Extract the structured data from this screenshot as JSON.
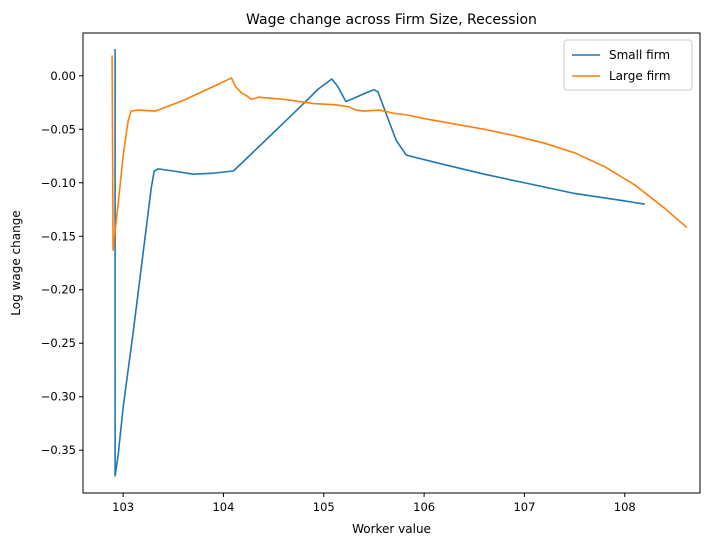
{
  "chart_data": {
    "type": "line",
    "title": "Wage change across Firm Size, Recession",
    "xlabel": "Worker value",
    "ylabel": "Log wage change",
    "xlim": [
      102.6,
      108.75
    ],
    "ylim": [
      -0.39,
      0.04
    ],
    "xticks": [
      103,
      104,
      105,
      106,
      107,
      108
    ],
    "xtick_labels": [
      "103",
      "104",
      "105",
      "106",
      "107",
      "108"
    ],
    "yticks": [
      0.0,
      -0.05,
      -0.1,
      -0.15,
      -0.2,
      -0.25,
      -0.3,
      -0.35
    ],
    "ytick_labels": [
      "0.00",
      "−0.05",
      "−0.10",
      "−0.15",
      "−0.20",
      "−0.25",
      "−0.30",
      "−0.35"
    ],
    "grid": false,
    "legend_position": "top-right",
    "series": [
      {
        "name": "Small firm",
        "color": "#1f77b4",
        "points": [
          [
            102.92,
            0.025
          ],
          [
            102.92,
            -0.374
          ],
          [
            102.95,
            -0.355
          ],
          [
            103.0,
            -0.31
          ],
          [
            103.1,
            -0.24
          ],
          [
            103.2,
            -0.165
          ],
          [
            103.28,
            -0.105
          ],
          [
            103.31,
            -0.089
          ],
          [
            103.35,
            -0.087
          ],
          [
            103.5,
            -0.089
          ],
          [
            103.7,
            -0.092
          ],
          [
            103.9,
            -0.091
          ],
          [
            104.1,
            -0.089
          ],
          [
            104.4,
            -0.062
          ],
          [
            104.7,
            -0.035
          ],
          [
            104.95,
            -0.012
          ],
          [
            105.08,
            -0.003
          ],
          [
            105.14,
            -0.01
          ],
          [
            105.22,
            -0.024
          ],
          [
            105.3,
            -0.021
          ],
          [
            105.42,
            -0.016
          ],
          [
            105.5,
            -0.013
          ],
          [
            105.54,
            -0.015
          ],
          [
            105.62,
            -0.035
          ],
          [
            105.72,
            -0.06
          ],
          [
            105.82,
            -0.074
          ],
          [
            105.9,
            -0.076
          ],
          [
            106.2,
            -0.083
          ],
          [
            106.6,
            -0.092
          ],
          [
            107.0,
            -0.1
          ],
          [
            107.5,
            -0.11
          ],
          [
            108.0,
            -0.117
          ],
          [
            108.2,
            -0.12
          ]
        ]
      },
      {
        "name": "Large firm",
        "color": "#ff7f0e",
        "points": [
          [
            102.89,
            0.019
          ],
          [
            102.9,
            -0.163
          ],
          [
            102.92,
            -0.145
          ],
          [
            102.95,
            -0.12
          ],
          [
            103.0,
            -0.075
          ],
          [
            103.05,
            -0.042
          ],
          [
            103.08,
            -0.033
          ],
          [
            103.15,
            -0.032
          ],
          [
            103.32,
            -0.033
          ],
          [
            103.6,
            -0.023
          ],
          [
            103.9,
            -0.01
          ],
          [
            104.08,
            -0.002
          ],
          [
            104.12,
            -0.01
          ],
          [
            104.18,
            -0.016
          ],
          [
            104.22,
            -0.018
          ],
          [
            104.28,
            -0.022
          ],
          [
            104.35,
            -0.02
          ],
          [
            104.6,
            -0.022
          ],
          [
            104.9,
            -0.026
          ],
          [
            105.1,
            -0.027
          ],
          [
            105.25,
            -0.029
          ],
          [
            105.32,
            -0.032
          ],
          [
            105.4,
            -0.033
          ],
          [
            105.55,
            -0.032
          ],
          [
            105.7,
            -0.035
          ],
          [
            105.85,
            -0.037
          ],
          [
            106.0,
            -0.04
          ],
          [
            106.3,
            -0.045
          ],
          [
            106.6,
            -0.05
          ],
          [
            106.9,
            -0.056
          ],
          [
            107.2,
            -0.063
          ],
          [
            107.5,
            -0.072
          ],
          [
            107.8,
            -0.085
          ],
          [
            108.1,
            -0.102
          ],
          [
            108.4,
            -0.124
          ],
          [
            108.62,
            -0.142
          ]
        ]
      }
    ]
  }
}
